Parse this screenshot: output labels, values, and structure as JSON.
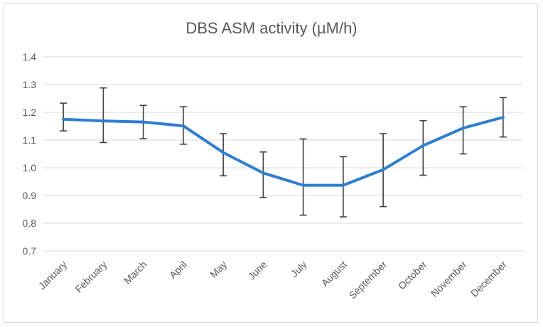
{
  "chart_data": {
    "type": "line",
    "title": "DBS ASM activity (µM/h)",
    "xlabel": "",
    "ylabel": "",
    "ylim": [
      0.7,
      1.4
    ],
    "yticks": [
      "0.7",
      "0.8",
      "0.9",
      "1.0",
      "1.1",
      "1.2",
      "1.3",
      "1.4"
    ],
    "ytick_values": [
      0.7,
      0.8,
      0.9,
      1.0,
      1.1,
      1.2,
      1.3,
      1.4
    ],
    "grid": true,
    "categories": [
      "January",
      "February",
      "March",
      "April",
      "May",
      "June",
      "July",
      "August",
      "September",
      "October",
      "November",
      "December"
    ],
    "series": [
      {
        "name": "DBS ASM activity",
        "color": "#2f7dd1",
        "values": [
          1.175,
          1.169,
          1.165,
          1.151,
          1.055,
          0.981,
          0.937,
          0.937,
          0.993,
          1.08,
          1.143,
          1.182
        ],
        "error_low": [
          1.133,
          1.091,
          1.105,
          1.085,
          0.971,
          0.893,
          0.829,
          0.823,
          0.86,
          0.973,
          1.05,
          1.111
        ],
        "error_high": [
          1.233,
          1.288,
          1.225,
          1.22,
          1.123,
          1.057,
          1.104,
          1.04,
          1.123,
          1.17,
          1.22,
          1.253
        ]
      }
    ]
  }
}
